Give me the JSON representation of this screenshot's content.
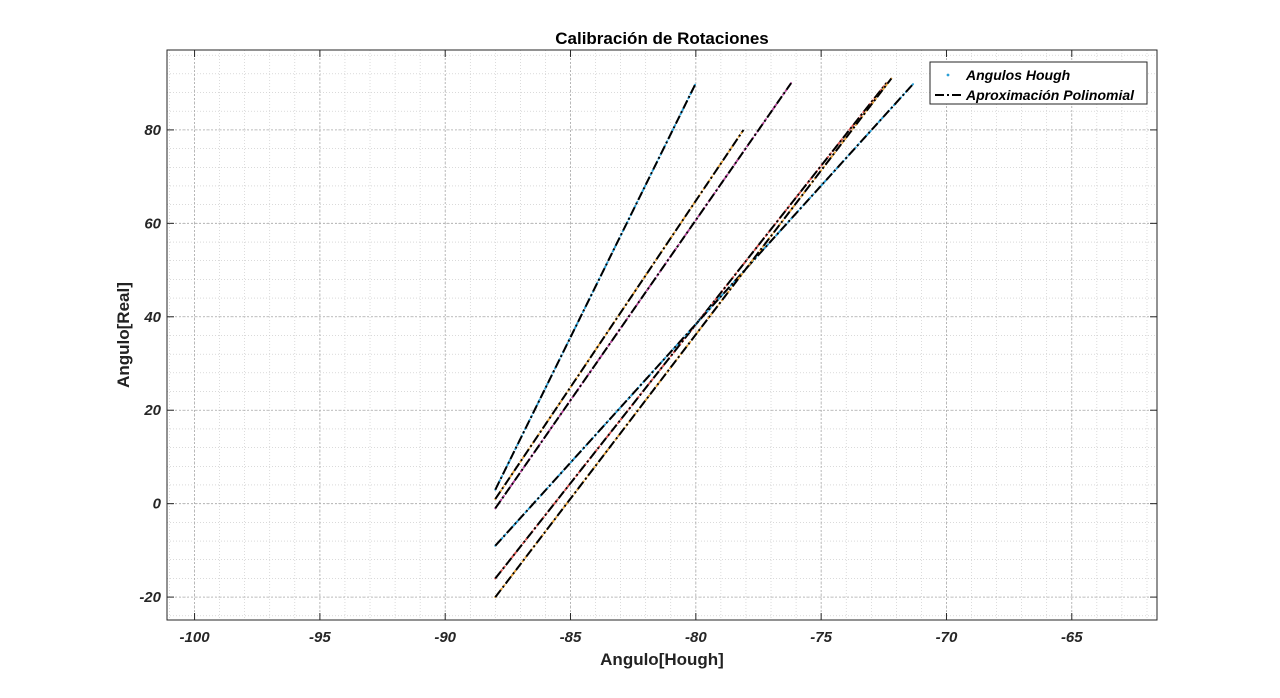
{
  "chart_data": {
    "type": "line",
    "title": "Calibración de Rotaciones",
    "xlabel": "Angulo[Hough]",
    "ylabel": "Angulo[Real]",
    "xlim": [
      -101.1,
      -61.6
    ],
    "ylim": [
      -24.9,
      97.1
    ],
    "x_ticks": [
      -100,
      -95,
      -90,
      -85,
      -80,
      -75,
      -70,
      -65
    ],
    "y_ticks": [
      -20,
      0,
      20,
      40,
      60,
      80
    ],
    "grid": true,
    "minor_grid": true,
    "legend_position": "top-right",
    "legend": [
      "Angulos Hough",
      "Aproximación Polinomial"
    ],
    "point_color": "#2a9fd6",
    "fit_color": "#000000",
    "series": [
      {
        "x": [
          -88.0,
          -80.0
        ],
        "y": [
          3,
          90
        ],
        "color": "#2a9fd6"
      },
      {
        "x": [
          -88.0,
          -78.1
        ],
        "y": [
          1,
          80
        ],
        "color": "#e6a23c"
      },
      {
        "x": [
          -88.0,
          -76.2
        ],
        "y": [
          -1,
          90
        ],
        "color": "#b5459b"
      },
      {
        "x": [
          -88.0,
          -72.4
        ],
        "y": [
          -16,
          90
        ],
        "color": "#d9534f"
      },
      {
        "x": [
          -88.0,
          -71.3
        ],
        "y": [
          -9,
          90
        ],
        "color": "#2a9fd6"
      },
      {
        "x": [
          -88.0,
          -72.2
        ],
        "y": [
          -20,
          91
        ],
        "color": "#e6a23c"
      }
    ]
  }
}
